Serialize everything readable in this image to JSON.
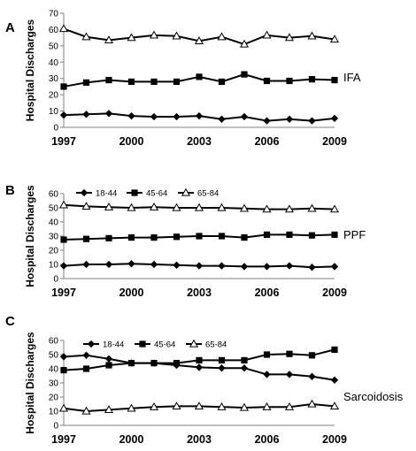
{
  "figure": {
    "panels": [
      {
        "letter": "A",
        "label": "IFA"
      },
      {
        "letter": "B",
        "label": "PPF"
      },
      {
        "letter": "C",
        "label": "Sarcoidosis"
      }
    ]
  },
  "colors": {
    "series": "#000000",
    "axis": "#808080",
    "text": "#000000"
  },
  "chart_data": [
    {
      "type": "line",
      "panel": "A",
      "annotation": "IFA",
      "ylabel": "Hospital Discharges",
      "xlabel": "",
      "ylim": [
        0,
        70
      ],
      "yticks": [
        0,
        10,
        20,
        30,
        40,
        50,
        60,
        70
      ],
      "xlim": [
        1997,
        2009
      ],
      "xticks": [
        1997,
        2000,
        2003,
        2006,
        2009
      ],
      "x": [
        1997,
        1998,
        1999,
        2000,
        2001,
        2002,
        2003,
        2004,
        2005,
        2006,
        2007,
        2008,
        2009
      ],
      "grid": false,
      "legend": null,
      "series": [
        {
          "values": [
            60.5,
            55.5,
            53.5,
            55,
            56.5,
            56,
            53,
            55.5,
            51,
            56.5,
            55,
            56,
            54
          ],
          "marker": "open-triangle"
        },
        {
          "values": [
            25,
            27.5,
            29,
            28,
            28,
            28,
            31,
            28,
            32.5,
            28.5,
            28.5,
            29.5,
            29
          ],
          "marker": "filled-square"
        },
        {
          "values": [
            7.5,
            8,
            8.5,
            7,
            6.5,
            6.5,
            7,
            5,
            6.5,
            4,
            5,
            4,
            5.5
          ],
          "marker": "filled-diamond"
        }
      ]
    },
    {
      "type": "line",
      "panel": "B",
      "annotation": "PPF",
      "ylabel": "Hospital Discharges",
      "xlabel": "",
      "ylim": [
        0,
        60
      ],
      "yticks": [
        0,
        10,
        20,
        30,
        40,
        50,
        60
      ],
      "xlim": [
        1997,
        2009
      ],
      "xticks": [
        1997,
        2000,
        2003,
        2006,
        2009
      ],
      "x": [
        1997,
        1998,
        1999,
        2000,
        2001,
        2002,
        2003,
        2004,
        2005,
        2006,
        2007,
        2008,
        2009
      ],
      "grid": false,
      "legend": "top",
      "series": [
        {
          "name": "18-44",
          "values": [
            9,
            10,
            10,
            10.5,
            10,
            9.5,
            9,
            9,
            8.5,
            8.5,
            9,
            8,
            8.5
          ],
          "marker": "filled-diamond"
        },
        {
          "name": "45-64",
          "values": [
            27.5,
            28,
            28.5,
            29,
            29,
            29.5,
            30,
            30,
            29,
            31,
            31,
            30.5,
            31
          ],
          "marker": "filled-square"
        },
        {
          "name": "65-84",
          "values": [
            52,
            51,
            50.5,
            50,
            50.5,
            50,
            50,
            50,
            49.5,
            49,
            49,
            49.5,
            49
          ],
          "marker": "open-triangle"
        }
      ]
    },
    {
      "type": "line",
      "panel": "C",
      "annotation": "Sarcoidosis",
      "ylabel": "Hospital Discharges",
      "xlabel": "",
      "ylim": [
        0,
        60
      ],
      "yticks": [
        0,
        10,
        20,
        30,
        40,
        50,
        60
      ],
      "xlim": [
        1997,
        2009
      ],
      "xticks": [
        1997,
        2000,
        2003,
        2006,
        2009
      ],
      "x": [
        1997,
        1998,
        1999,
        2000,
        2001,
        2002,
        2003,
        2004,
        2005,
        2006,
        2007,
        2008,
        2009
      ],
      "grid": false,
      "legend": "top",
      "series": [
        {
          "name": "18-44",
          "values": [
            48.5,
            49.5,
            47,
            44,
            44,
            42.5,
            41,
            40.5,
            40.5,
            36,
            36,
            34.5,
            32
          ],
          "marker": "filled-diamond"
        },
        {
          "name": "45-64",
          "values": [
            39,
            40,
            42.5,
            44,
            44,
            44,
            46,
            46,
            46,
            50,
            50.5,
            49.5,
            53.5
          ],
          "marker": "filled-square"
        },
        {
          "name": "65-84",
          "values": [
            12,
            10,
            11,
            12,
            13,
            13.5,
            13.5,
            13,
            12.5,
            13,
            13,
            15,
            13.5
          ],
          "marker": "open-triangle"
        }
      ]
    }
  ]
}
